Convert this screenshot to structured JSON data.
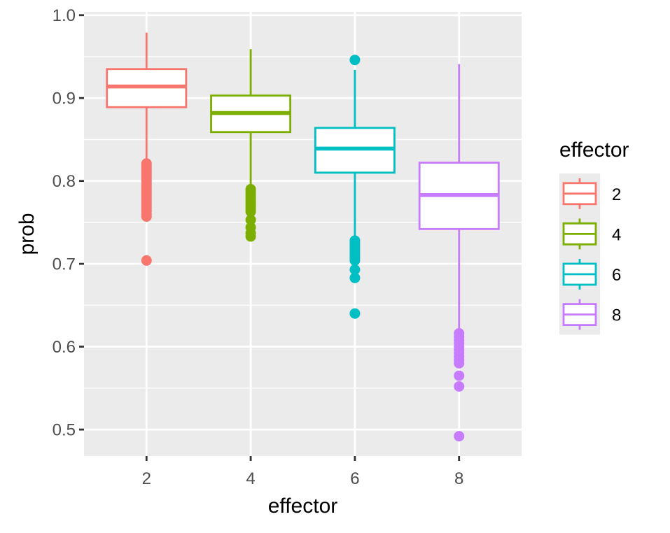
{
  "chart_data": {
    "type": "boxplot",
    "title": "",
    "xlabel": "effector",
    "ylabel": "prob",
    "xlim": [
      0.8,
      9.2
    ],
    "ylim": [
      0.468,
      1.004
    ],
    "x_ticks": [
      2,
      4,
      6,
      8
    ],
    "x_tick_labels": [
      "2",
      "4",
      "6",
      "8"
    ],
    "y_ticks": [
      0.5,
      0.6,
      0.7,
      0.8,
      0.9,
      1.0
    ],
    "y_tick_labels": [
      "0.5",
      "0.6",
      "0.7",
      "0.8",
      "0.9",
      "1.0"
    ],
    "y_minor_ticks": [
      0.55,
      0.65,
      0.75,
      0.85,
      0.95
    ],
    "grid": true,
    "background": "#ebebeb",
    "legend": {
      "title": "effector",
      "position": "right"
    },
    "box_halfwidth": 0.76,
    "series": [
      {
        "name": "2",
        "x": 2,
        "color": "#f8766d",
        "whisker_low": 0.826,
        "q1": 0.889,
        "median": 0.914,
        "q3": 0.935,
        "whisker_high": 0.979,
        "outliers": [
          0.821,
          0.818,
          0.815,
          0.812,
          0.809,
          0.806,
          0.803,
          0.8,
          0.797,
          0.794,
          0.791,
          0.788,
          0.785,
          0.782,
          0.779,
          0.776,
          0.773,
          0.77,
          0.767,
          0.764,
          0.76,
          0.757,
          0.704
        ]
      },
      {
        "name": "4",
        "x": 4,
        "color": "#7cae00",
        "whisker_low": 0.795,
        "q1": 0.859,
        "median": 0.882,
        "q3": 0.903,
        "whisker_high": 0.959,
        "outliers": [
          0.79,
          0.787,
          0.784,
          0.781,
          0.778,
          0.775,
          0.772,
          0.769,
          0.766,
          0.763,
          0.753,
          0.744,
          0.737,
          0.733
        ]
      },
      {
        "name": "6",
        "x": 6,
        "color": "#00bfc4",
        "whisker_low": 0.734,
        "q1": 0.81,
        "median": 0.839,
        "q3": 0.864,
        "whisker_high": 0.934,
        "outliers": [
          0.946,
          0.728,
          0.725,
          0.722,
          0.719,
          0.716,
          0.713,
          0.71,
          0.707,
          0.704,
          0.693,
          0.683,
          0.64
        ]
      },
      {
        "name": "8",
        "x": 8,
        "color": "#c77cff",
        "whisker_low": 0.622,
        "q1": 0.742,
        "median": 0.783,
        "q3": 0.822,
        "whisker_high": 0.941,
        "outliers": [
          0.616,
          0.612,
          0.608,
          0.604,
          0.6,
          0.596,
          0.592,
          0.588,
          0.584,
          0.58,
          0.565,
          0.552,
          0.492
        ]
      }
    ]
  }
}
